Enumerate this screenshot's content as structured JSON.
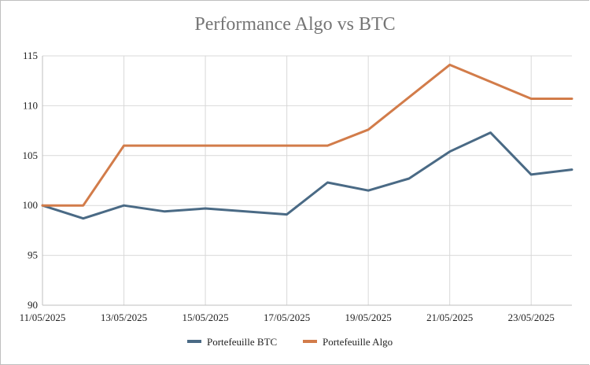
{
  "chart_data": {
    "type": "line",
    "title": "Performance Algo vs BTC",
    "xlabel": "",
    "ylabel": "",
    "ylim": [
      90,
      115
    ],
    "yticks": [
      90,
      95,
      100,
      105,
      110,
      115
    ],
    "x": [
      "11/05/2025",
      "12/05/2025",
      "13/05/2025",
      "14/05/2025",
      "15/05/2025",
      "16/05/2025",
      "17/05/2025",
      "18/05/2025",
      "19/05/2025",
      "20/05/2025",
      "21/05/2025",
      "22/05/2025",
      "23/05/2025",
      "24/05/2025"
    ],
    "xtick_labels": [
      "11/05/2025",
      "13/05/2025",
      "15/05/2025",
      "17/05/2025",
      "19/05/2025",
      "21/05/2025",
      "23/05/2025"
    ],
    "grid": true,
    "legend_position": "bottom",
    "series": [
      {
        "name": "Portefeuille BTC",
        "color": "#4a6a85",
        "values": [
          100,
          98.7,
          100.0,
          99.4,
          99.7,
          null,
          99.1,
          102.3,
          101.5,
          102.7,
          105.4,
          107.3,
          103.1,
          103.6
        ]
      },
      {
        "name": "Portefeuille Algo",
        "color": "#d27c4a",
        "values": [
          100,
          100,
          106.0,
          null,
          null,
          null,
          106.0,
          106.0,
          107.6,
          null,
          114.1,
          null,
          110.7,
          110.7
        ]
      }
    ]
  }
}
